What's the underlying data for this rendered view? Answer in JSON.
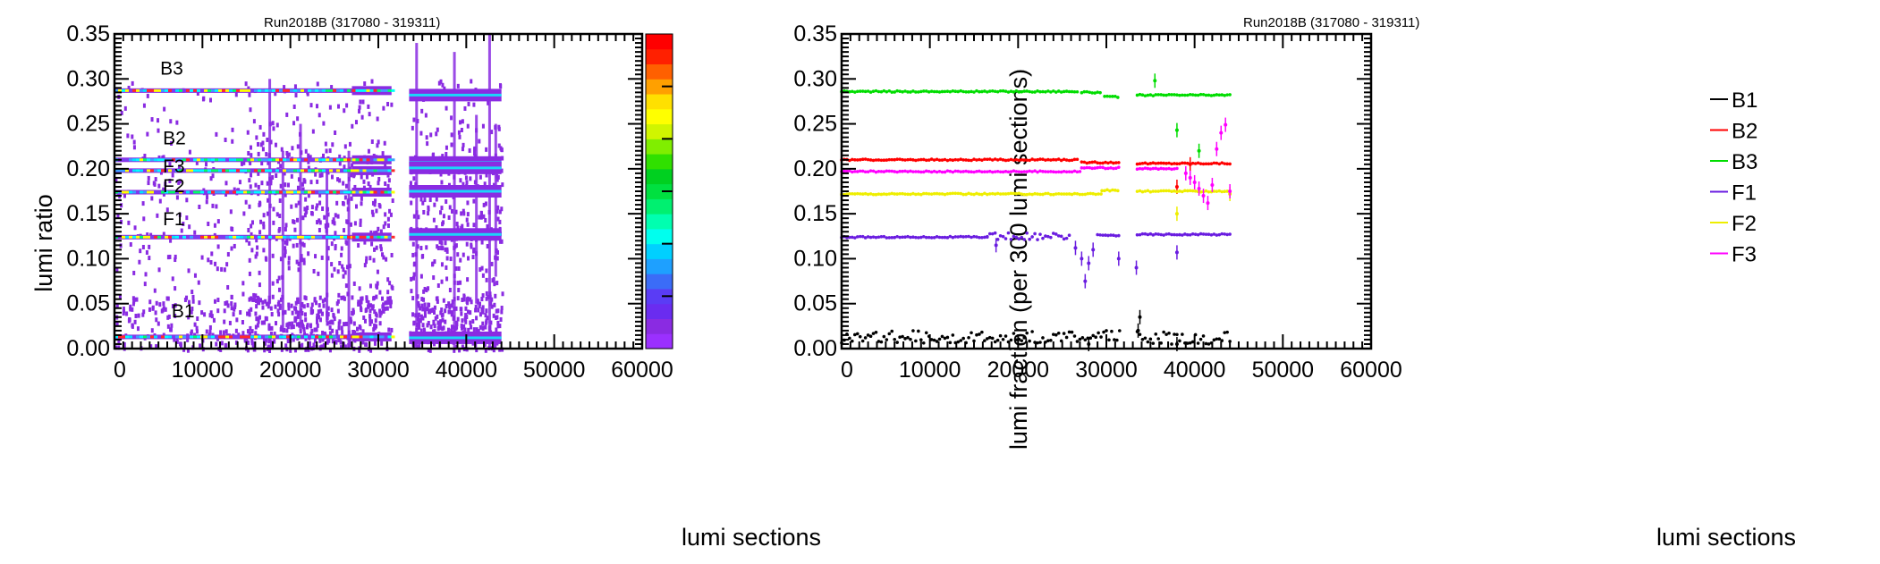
{
  "left_chart": {
    "title": "Run2018B (317080 - 319311)",
    "xlabel": "lumi sections",
    "ylabel": "lumi ratio"
  },
  "right_chart": {
    "title": "Run2018B (317080 - 319311)",
    "xlabel": "lumi sections",
    "ylabel": "lumi fraction (per 300 lumi sections)"
  },
  "colors": {
    "B1": "#000000",
    "B2": "#ff0000",
    "B3": "#00dd00",
    "F1": "#6a1de0",
    "F2": "#eeee00",
    "F3": "#ff00ff",
    "heat_low": "#8a2be2"
  },
  "chart_data": [
    {
      "type": "heatmap",
      "title": "Run2018B (317080 - 319311)",
      "xlabel": "lumi sections",
      "ylabel": "lumi ratio",
      "xlim": [
        0,
        60000
      ],
      "ylim": [
        0,
        0.35
      ],
      "x_ticks": [
        "0",
        "10000",
        "20000",
        "30000",
        "40000",
        "50000",
        "60000"
      ],
      "y_ticks": [
        "0.00",
        "0.05",
        "0.10",
        "0.15",
        "0.20",
        "0.25",
        "0.30",
        "0.35"
      ],
      "colorbar": true,
      "annotations": [
        {
          "text": "B3",
          "x": 5200,
          "y": 0.305
        },
        {
          "text": "B2",
          "x": 5500,
          "y": 0.227
        },
        {
          "text": "F3",
          "x": 5500,
          "y": 0.196
        },
        {
          "text": "F2",
          "x": 5500,
          "y": 0.174
        },
        {
          "text": "F1",
          "x": 5500,
          "y": 0.137
        },
        {
          "text": "B1",
          "x": 6500,
          "y": 0.035
        }
      ],
      "bands": [
        {
          "name": "B3",
          "y": 0.287,
          "x_segments": [
            [
              0,
              27000
            ],
            [
              27000,
              31500
            ],
            [
              33500,
              44000
            ]
          ],
          "y_late": 0.282
        },
        {
          "name": "B2",
          "y": 0.21,
          "x_segments": [
            [
              0,
              27000
            ],
            [
              27000,
              31500
            ],
            [
              33500,
              44000
            ]
          ],
          "y_late": 0.207
        },
        {
          "name": "F3",
          "y": 0.198,
          "x_segments": [
            [
              0,
              27000
            ],
            [
              27000,
              31500
            ],
            [
              33500,
              44000
            ]
          ],
          "y_late": 0.201
        },
        {
          "name": "F2",
          "y": 0.174,
          "x_segments": [
            [
              0,
              27000
            ],
            [
              27000,
              31500
            ],
            [
              33500,
              44000
            ]
          ],
          "y_late": 0.175
        },
        {
          "name": "F1",
          "y": 0.124,
          "x_segments": [
            [
              0,
              27000
            ],
            [
              27000,
              31500
            ],
            [
              33500,
              44000
            ]
          ],
          "y_late": 0.127
        },
        {
          "name": "B1",
          "y": 0.013,
          "x_segments": [
            [
              0,
              27000
            ],
            [
              27000,
              31500
            ],
            [
              33500,
              44000
            ]
          ],
          "y_late": 0.012
        }
      ]
    },
    {
      "type": "scatter",
      "title": "Run2018B (317080 - 319311)",
      "xlabel": "lumi sections",
      "ylabel": "lumi fraction (per 300 lumi sections)",
      "xlim": [
        0,
        60000
      ],
      "ylim": [
        0,
        0.35
      ],
      "x_ticks": [
        "0",
        "10000",
        "20000",
        "30000",
        "40000",
        "50000",
        "60000"
      ],
      "y_ticks": [
        "0.00",
        "0.05",
        "0.10",
        "0.15",
        "0.20",
        "0.25",
        "0.30",
        "0.35"
      ],
      "legend": "right",
      "series": [
        {
          "name": "B1",
          "color": "#000000",
          "segments": [
            {
              "x": [
                0,
                31500
              ],
              "y": 0.013
            },
            {
              "x": [
                33500,
                44000
              ],
              "y": 0.012
            }
          ],
          "outliers": [
            [
              28000,
              0.005
            ],
            [
              33800,
              0.035
            ],
            [
              33600,
              0.02
            ],
            [
              38000,
              0.005
            ]
          ]
        },
        {
          "name": "B2",
          "color": "#ff0000",
          "segments": [
            {
              "x": [
                0,
                26800
              ],
              "y": 0.21
            },
            {
              "x": [
                27200,
                31500
              ],
              "y": 0.207
            },
            {
              "x": [
                33500,
                44000
              ],
              "y": 0.206
            }
          ],
          "outliers": [
            [
              38000,
              0.18
            ],
            [
              39500,
              0.205
            ]
          ]
        },
        {
          "name": "B3",
          "color": "#00dd00",
          "segments": [
            {
              "x": [
                0,
                26800
              ],
              "y": 0.286
            },
            {
              "x": [
                27200,
                29500
              ],
              "y": 0.285
            },
            {
              "x": [
                29800,
                31500
              ],
              "y": 0.28
            },
            {
              "x": [
                33500,
                44000
              ],
              "y": 0.282
            }
          ],
          "outliers": [
            [
              35500,
              0.298
            ],
            [
              38000,
              0.243
            ],
            [
              40500,
              0.22
            ]
          ]
        },
        {
          "name": "F1",
          "color": "#6a1de0",
          "segments": [
            {
              "x": [
                0,
                16500
              ],
              "y": 0.124
            },
            {
              "x": [
                16500,
                26000
              ],
              "y": 0.125
            },
            {
              "x": [
                29000,
                31500
              ],
              "y": 0.126
            },
            {
              "x": [
                33500,
                44000
              ],
              "y": 0.127
            }
          ],
          "outliers": [
            [
              17500,
              0.115
            ],
            [
              26500,
              0.112
            ],
            [
              27200,
              0.1
            ],
            [
              27600,
              0.075
            ],
            [
              28000,
              0.095
            ],
            [
              28500,
              0.11
            ],
            [
              31400,
              0.1
            ],
            [
              33400,
              0.09
            ],
            [
              38000,
              0.107
            ]
          ]
        },
        {
          "name": "F2",
          "color": "#eeee00",
          "segments": [
            {
              "x": [
                0,
                29500
              ],
              "y": 0.172
            },
            {
              "x": [
                29500,
                31500
              ],
              "y": 0.176
            },
            {
              "x": [
                33500,
                44000
              ],
              "y": 0.175
            }
          ],
          "outliers": [
            [
              38000,
              0.15
            ],
            [
              44000,
              0.172
            ]
          ]
        },
        {
          "name": "F3",
          "color": "#ff00ff",
          "segments": [
            {
              "x": [
                0,
                27000
              ],
              "y": 0.197
            },
            {
              "x": [
                27200,
                31500
              ],
              "y": 0.201
            },
            {
              "x": [
                33500,
                38000
              ],
              "y": 0.2
            }
          ],
          "outliers": [
            [
              39000,
              0.195
            ],
            [
              39500,
              0.19
            ],
            [
              40000,
              0.185
            ],
            [
              40500,
              0.178
            ],
            [
              41000,
              0.17
            ],
            [
              41500,
              0.162
            ],
            [
              42000,
              0.182
            ],
            [
              42500,
              0.222
            ],
            [
              43000,
              0.24
            ],
            [
              43500,
              0.249
            ],
            [
              44000,
              0.175
            ]
          ]
        }
      ]
    }
  ]
}
